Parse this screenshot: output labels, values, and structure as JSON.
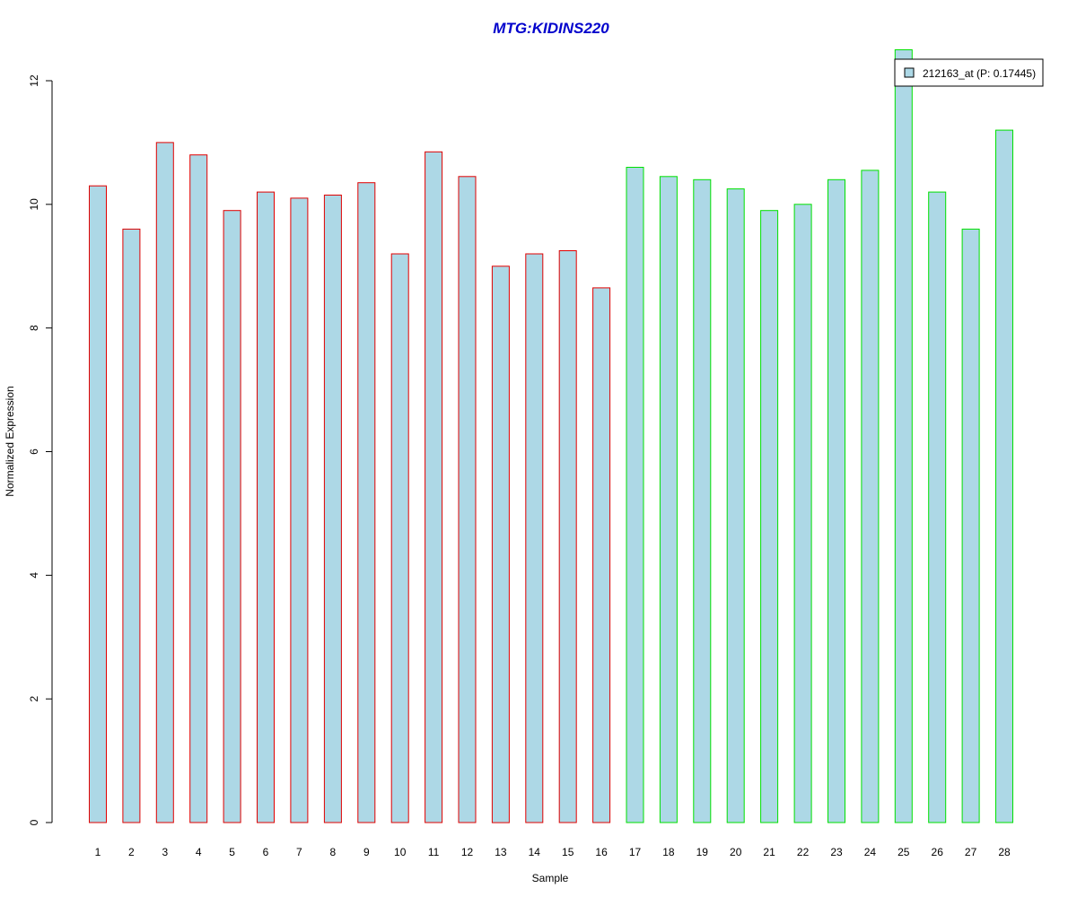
{
  "chart_data": {
    "type": "bar",
    "title": "MTG:KIDINS220",
    "xlabel": "Sample",
    "ylabel": "Normalized Expression",
    "ylim": [
      0,
      12
    ],
    "yticks": [
      0,
      2,
      4,
      6,
      8,
      10,
      12
    ],
    "categories": [
      "1",
      "2",
      "3",
      "4",
      "5",
      "6",
      "7",
      "8",
      "9",
      "10",
      "11",
      "12",
      "13",
      "14",
      "15",
      "16",
      "17",
      "18",
      "19",
      "20",
      "21",
      "22",
      "23",
      "24",
      "25",
      "26",
      "27",
      "28"
    ],
    "values": [
      10.3,
      9.6,
      11.0,
      10.8,
      9.9,
      10.2,
      10.1,
      10.15,
      10.35,
      9.2,
      10.85,
      10.45,
      9.0,
      9.2,
      9.25,
      8.65,
      10.6,
      10.45,
      10.4,
      10.25,
      9.9,
      10.0,
      10.4,
      10.55,
      12.5,
      10.2,
      9.6,
      11.2
    ],
    "groups": [
      1,
      1,
      1,
      1,
      1,
      1,
      1,
      1,
      1,
      1,
      1,
      1,
      1,
      1,
      1,
      1,
      2,
      2,
      2,
      2,
      2,
      2,
      2,
      2,
      2,
      2,
      2,
      2
    ],
    "legend": {
      "label": "212163_at (P: 0.17445)",
      "placement": "top-right"
    },
    "colors": {
      "title": "#0000cc",
      "bar_fill": "#add8e6",
      "group1_border": "#e00000",
      "group2_border": "#00e000",
      "axis": "#000000"
    }
  }
}
